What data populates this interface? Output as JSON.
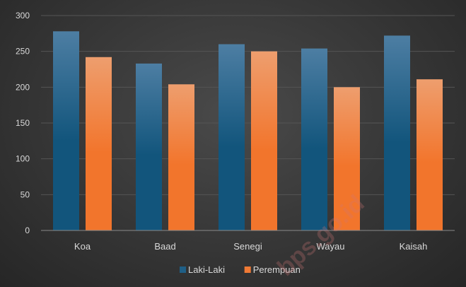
{
  "chart_data": {
    "type": "bar",
    "categories": [
      "Koa",
      "Baad",
      "Senegi",
      "Wayau",
      "Kaisah"
    ],
    "series": [
      {
        "name": "Laki-Laki",
        "values": [
          278,
          233,
          260,
          254,
          272
        ],
        "color": "#1f5f86"
      },
      {
        "name": "Perempuan",
        "values": [
          242,
          204,
          250,
          200,
          211
        ],
        "color": "#f07a35"
      }
    ],
    "title": "",
    "xlabel": "",
    "ylabel": "",
    "ylim": [
      0,
      300
    ],
    "yticks": [
      0,
      50,
      100,
      150,
      200,
      250,
      300
    ],
    "grid": true,
    "legend_position": "bottom",
    "watermark": "bps.go.id"
  },
  "colors": {
    "background": "#363636",
    "gridline": "#555555",
    "text": "#d9d9d9"
  }
}
